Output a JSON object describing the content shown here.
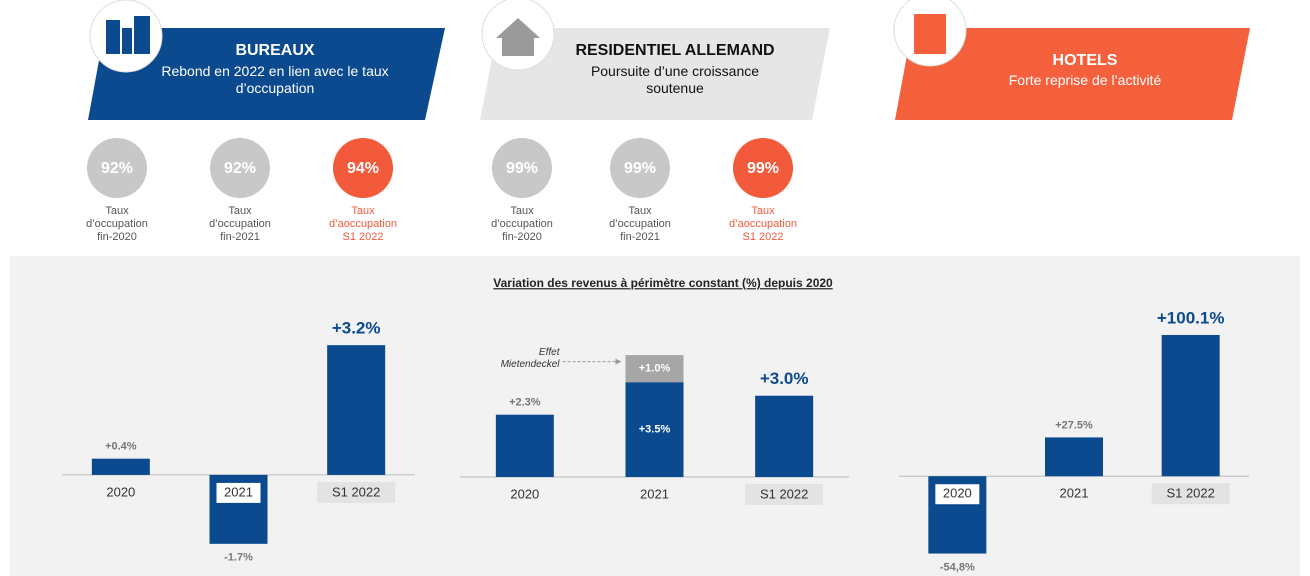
{
  "sections": [
    {
      "title": "BUREAUX",
      "subtitle": "Rebond en 2022 en lien avec le taux d’occupation",
      "occupancy": [
        {
          "rate": "92%",
          "label": "Taux d’occupation fin-2020"
        },
        {
          "rate": "92%",
          "label": "Taux d’occupation fin-2021"
        },
        {
          "rate": "94%",
          "label": "Taux d’aoccupation S1 2022"
        }
      ]
    },
    {
      "title": "RESIDENTIEL ALLEMAND",
      "subtitle": "Poursuite d’une croissance soutenue",
      "occupancy": [
        {
          "rate": "99%",
          "label": "Taux d’occupation fin-2020"
        },
        {
          "rate": "99%",
          "label": "Taux d’occupation fin-2021"
        },
        {
          "rate": "99%",
          "label": "Taux d’aoccupation S1 2022"
        }
      ]
    },
    {
      "title": "HOTELS",
      "subtitle": "Forte reprise de l’activité"
    }
  ],
  "panel_title": "Variation des revenus à périmètre constant (%) depuis 2020",
  "chart_data": [
    {
      "type": "bar",
      "categories": [
        "2020",
        "2021",
        "S1 2022"
      ],
      "values": [
        0.4,
        -1.7,
        3.2
      ],
      "value_labels": [
        "+0.4%",
        "-1.7%",
        "+3.2%"
      ],
      "color": "#0b4a8e",
      "ylim": [
        -2,
        3.5
      ]
    },
    {
      "type": "bar",
      "categories": [
        "2020",
        "2021",
        "S1 2022"
      ],
      "ylim": [
        0,
        5.5
      ],
      "series": [
        {
          "color": "#0b4a8e",
          "values": [
            2.3,
            3.5,
            3.0
          ],
          "value_labels": [
            "+2.3%",
            "+3.5%",
            "+3.0%"
          ]
        },
        {
          "name": "Effet Mietendeckel",
          "color": "#a6a6a6",
          "values": [
            null,
            1.0,
            null
          ],
          "value_labels": [
            null,
            "+1.0%",
            null
          ]
        }
      ]
    },
    {
      "type": "bar",
      "categories": [
        "2020",
        "2021",
        "S1 2022"
      ],
      "values": [
        -54.8,
        27.5,
        100.1
      ],
      "value_labels": [
        "-54,8%",
        "+27.5%",
        "+100.1%"
      ],
      "color": "#0b4a8e",
      "ylim": [
        -70,
        110
      ]
    }
  ]
}
